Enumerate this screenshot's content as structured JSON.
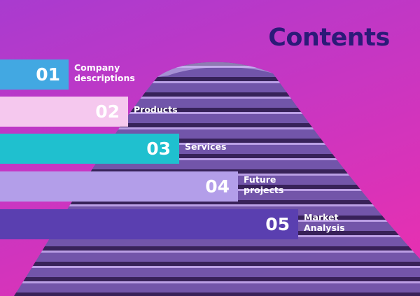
{
  "title": "Contents",
  "items": [
    {
      "number": "01",
      "label": "Company descriptions",
      "color": "#42a8e2"
    },
    {
      "number": "02",
      "label": "Products",
      "color": "#f5c8ee"
    },
    {
      "number": "03",
      "label": "Services",
      "color": "#1fc0cf"
    },
    {
      "number": "04",
      "label": "Future projects",
      "color": "#b39ee9"
    },
    {
      "number": "05",
      "label": "Market Analysis",
      "color": "#5a3fb0"
    }
  ]
}
